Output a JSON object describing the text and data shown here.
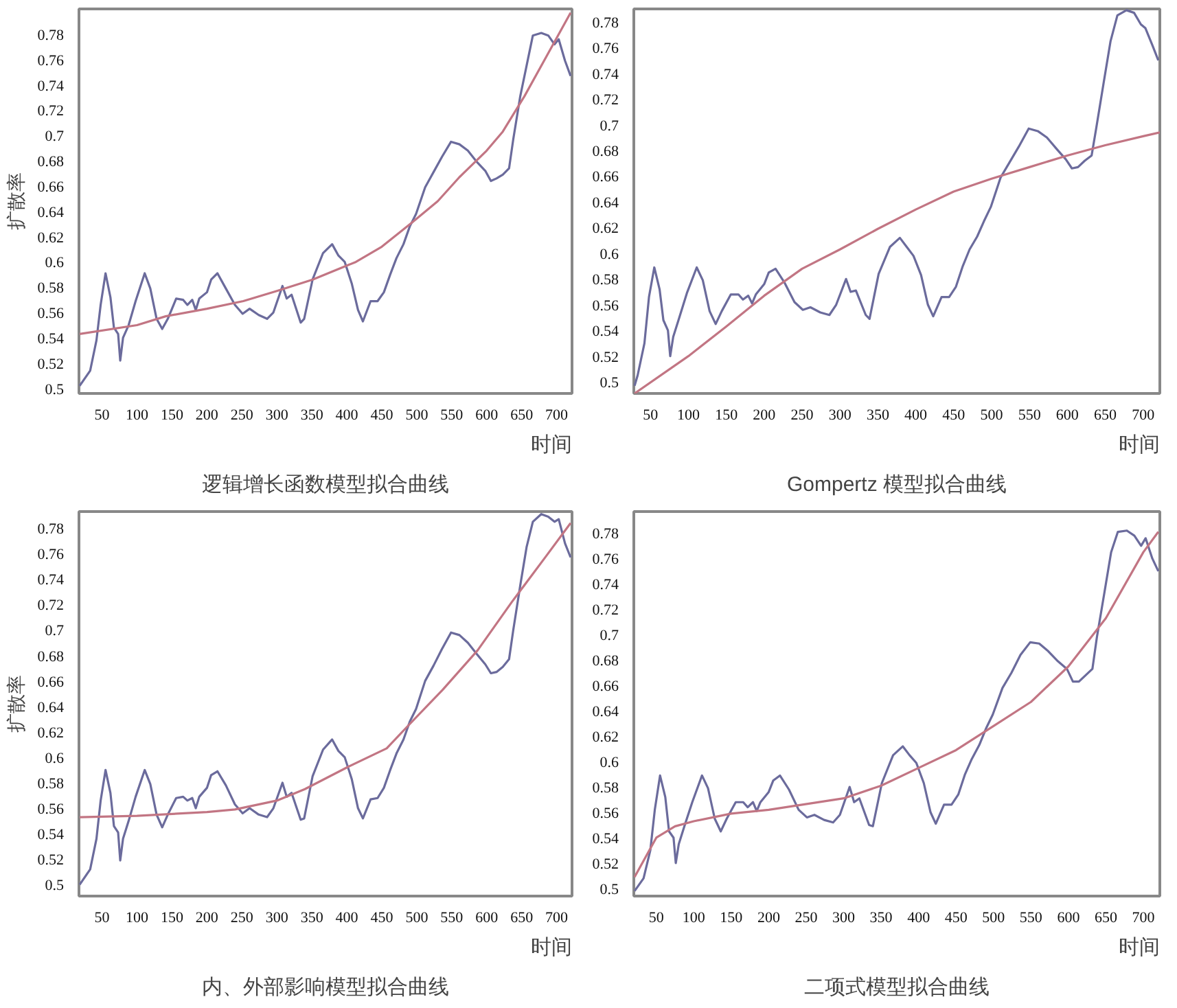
{
  "chart_data": [
    {
      "type": "line",
      "title": "逻辑增长函数模型拟合曲线",
      "xlabel": "时间",
      "ylabel": "扩散率",
      "xlim": [
        17,
        722
      ],
      "ylim": [
        0.496,
        0.8
      ],
      "xticks": [
        50,
        100,
        150,
        200,
        250,
        300,
        350,
        400,
        450,
        500,
        550,
        600,
        650,
        700
      ],
      "yticks": [
        0.5,
        0.52,
        0.54,
        0.56,
        0.58,
        0.6,
        0.62,
        0.64,
        0.66,
        0.68,
        0.7,
        0.72,
        0.74,
        0.76,
        0.78
      ],
      "series": [
        {
          "color": "#6b6b9c",
          "x": [
            18,
            33,
            42,
            48,
            55,
            62,
            67,
            73,
            76,
            80,
            88,
            98,
            111,
            119,
            128,
            136,
            144,
            156,
            166,
            172,
            179,
            184,
            189,
            200,
            206,
            215,
            227,
            240,
            251,
            261,
            274,
            286,
            295,
            308,
            314,
            321,
            334,
            339,
            351,
            366,
            379,
            388,
            397,
            407,
            416,
            423,
            434,
            444,
            453,
            462,
            471,
            481,
            490,
            499,
            512,
            524,
            536,
            549,
            561,
            573,
            586,
            598,
            606,
            614,
            623,
            632,
            638,
            648,
            657,
            666,
            678,
            688,
            697,
            703,
            712,
            720
          ],
          "values": [
            0.502,
            0.514,
            0.538,
            0.566,
            0.591,
            0.572,
            0.548,
            0.543,
            0.522,
            0.54,
            0.55,
            0.569,
            0.591,
            0.579,
            0.555,
            0.547,
            0.555,
            0.571,
            0.57,
            0.566,
            0.57,
            0.562,
            0.571,
            0.576,
            0.586,
            0.591,
            0.579,
            0.566,
            0.559,
            0.563,
            0.558,
            0.555,
            0.56,
            0.581,
            0.571,
            0.574,
            0.552,
            0.555,
            0.586,
            0.607,
            0.614,
            0.605,
            0.6,
            0.583,
            0.562,
            0.553,
            0.569,
            0.569,
            0.576,
            0.59,
            0.603,
            0.614,
            0.628,
            0.638,
            0.659,
            0.671,
            0.683,
            0.695,
            0.693,
            0.688,
            0.679,
            0.672,
            0.664,
            0.666,
            0.669,
            0.674,
            0.697,
            0.731,
            0.755,
            0.779,
            0.781,
            0.779,
            0.772,
            0.776,
            0.759,
            0.747
          ]
        },
        {
          "color": "#c27583",
          "x": [
            18,
            100,
            141,
            200,
            252,
            300,
            351,
            413,
            450,
            493,
            530,
            561,
            600,
            623,
            654,
            685,
            720
          ],
          "values": [
            0.543,
            0.55,
            0.557,
            0.563,
            0.569,
            0.577,
            0.586,
            0.6,
            0.612,
            0.631,
            0.648,
            0.667,
            0.688,
            0.703,
            0.731,
            0.762,
            0.797
          ]
        }
      ]
    },
    {
      "type": "line",
      "title": "Gompertz 模型拟合曲线",
      "xlabel": "时间",
      "xlim": [
        28,
        722
      ],
      "ylim": [
        0.491,
        0.79
      ],
      "xticks": [
        50,
        100,
        150,
        200,
        250,
        300,
        350,
        400,
        450,
        500,
        550,
        600,
        650,
        700
      ],
      "yticks": [
        0.5,
        0.52,
        0.54,
        0.56,
        0.58,
        0.6,
        0.62,
        0.64,
        0.66,
        0.68,
        0.7,
        0.72,
        0.74,
        0.76,
        0.78
      ],
      "series": [
        {
          "color": "#6b6b9c",
          "x": [
            29,
            33,
            42,
            48,
            55,
            62,
            67,
            73,
            76,
            80,
            88,
            98,
            111,
            119,
            128,
            136,
            144,
            156,
            166,
            172,
            179,
            184,
            189,
            200,
            206,
            215,
            227,
            240,
            251,
            261,
            274,
            286,
            295,
            308,
            314,
            321,
            334,
            339,
            351,
            366,
            379,
            388,
            397,
            407,
            416,
            423,
            434,
            444,
            453,
            462,
            471,
            481,
            490,
            499,
            512,
            524,
            536,
            549,
            561,
            573,
            586,
            598,
            606,
            614,
            623,
            632,
            638,
            648,
            657,
            666,
            678,
            688,
            697,
            703,
            712,
            720
          ],
          "values": [
            0.497,
            0.505,
            0.53,
            0.566,
            0.589,
            0.572,
            0.548,
            0.54,
            0.52,
            0.535,
            0.55,
            0.569,
            0.589,
            0.579,
            0.555,
            0.545,
            0.555,
            0.568,
            0.568,
            0.564,
            0.567,
            0.561,
            0.568,
            0.576,
            0.585,
            0.588,
            0.577,
            0.562,
            0.556,
            0.558,
            0.554,
            0.552,
            0.56,
            0.58,
            0.57,
            0.571,
            0.552,
            0.549,
            0.584,
            0.605,
            0.612,
            0.605,
            0.598,
            0.583,
            0.56,
            0.551,
            0.566,
            0.566,
            0.574,
            0.59,
            0.603,
            0.613,
            0.625,
            0.636,
            0.659,
            0.671,
            0.683,
            0.697,
            0.695,
            0.69,
            0.681,
            0.673,
            0.666,
            0.667,
            0.672,
            0.676,
            0.697,
            0.733,
            0.765,
            0.785,
            0.789,
            0.787,
            0.778,
            0.775,
            0.762,
            0.75
          ]
        },
        {
          "color": "#c27583",
          "x": [
            29,
            100,
            150,
            200,
            250,
            300,
            350,
            400,
            450,
            500,
            550,
            600,
            650,
            700,
            722
          ],
          "values": [
            0.491,
            0.52,
            0.543,
            0.567,
            0.588,
            0.603,
            0.619,
            0.634,
            0.648,
            0.658,
            0.667,
            0.676,
            0.684,
            0.691,
            0.694
          ]
        }
      ]
    },
    {
      "type": "line",
      "title": "内、外部影响模型拟合曲线",
      "xlabel": "时间",
      "ylabel": "扩散率",
      "xlim": [
        17,
        722
      ],
      "ylim": [
        0.491,
        0.793
      ],
      "xticks": [
        50,
        100,
        150,
        200,
        250,
        300,
        350,
        400,
        450,
        500,
        550,
        600,
        650,
        700
      ],
      "yticks": [
        0.5,
        0.52,
        0.54,
        0.56,
        0.58,
        0.6,
        0.62,
        0.64,
        0.66,
        0.68,
        0.7,
        0.72,
        0.74,
        0.76,
        0.78
      ],
      "series": [
        {
          "color": "#6b6b9c",
          "x": [
            18,
            33,
            42,
            48,
            55,
            62,
            67,
            73,
            76,
            80,
            88,
            98,
            111,
            119,
            128,
            136,
            144,
            156,
            166,
            172,
            179,
            184,
            189,
            200,
            206,
            215,
            227,
            240,
            251,
            261,
            274,
            286,
            295,
            308,
            314,
            321,
            334,
            339,
            351,
            366,
            379,
            388,
            397,
            407,
            416,
            423,
            434,
            444,
            453,
            462,
            471,
            481,
            490,
            499,
            512,
            524,
            536,
            549,
            561,
            573,
            586,
            598,
            606,
            614,
            623,
            632,
            638,
            648,
            657,
            666,
            678,
            688,
            697,
            703,
            712,
            720
          ],
          "values": [
            0.5,
            0.512,
            0.536,
            0.566,
            0.59,
            0.572,
            0.546,
            0.541,
            0.519,
            0.536,
            0.55,
            0.569,
            0.59,
            0.579,
            0.555,
            0.545,
            0.555,
            0.568,
            0.569,
            0.566,
            0.568,
            0.56,
            0.569,
            0.576,
            0.586,
            0.589,
            0.578,
            0.563,
            0.556,
            0.56,
            0.555,
            0.553,
            0.56,
            0.58,
            0.569,
            0.572,
            0.551,
            0.552,
            0.585,
            0.606,
            0.614,
            0.605,
            0.6,
            0.583,
            0.56,
            0.552,
            0.567,
            0.568,
            0.576,
            0.59,
            0.603,
            0.614,
            0.628,
            0.638,
            0.66,
            0.672,
            0.685,
            0.698,
            0.696,
            0.69,
            0.681,
            0.673,
            0.666,
            0.667,
            0.671,
            0.677,
            0.7,
            0.735,
            0.765,
            0.785,
            0.791,
            0.789,
            0.785,
            0.787,
            0.768,
            0.757
          ]
        },
        {
          "color": "#c27583",
          "x": [
            18,
            100,
            200,
            240,
            300,
            340,
            400,
            457,
            488,
            537,
            587,
            636,
            685,
            720
          ],
          "values": [
            0.553,
            0.554,
            0.557,
            0.559,
            0.566,
            0.575,
            0.592,
            0.607,
            0.625,
            0.653,
            0.684,
            0.722,
            0.758,
            0.784
          ]
        }
      ]
    },
    {
      "type": "line",
      "title": "二项式模型拟合曲线",
      "xlabel": "时间",
      "xlim": [
        20,
        722
      ],
      "ylim": [
        0.494,
        0.797
      ],
      "xticks": [
        50,
        100,
        150,
        200,
        250,
        300,
        350,
        400,
        450,
        500,
        550,
        600,
        650,
        700
      ],
      "yticks": [
        0.5,
        0.52,
        0.54,
        0.56,
        0.58,
        0.6,
        0.62,
        0.64,
        0.66,
        0.68,
        0.7,
        0.72,
        0.74,
        0.76,
        0.78
      ],
      "series": [
        {
          "color": "#6b6b9c",
          "x": [
            21,
            33,
            42,
            48,
            55,
            62,
            67,
            73,
            76,
            80,
            88,
            98,
            111,
            119,
            128,
            136,
            144,
            156,
            166,
            172,
            179,
            184,
            189,
            200,
            206,
            215,
            227,
            240,
            251,
            261,
            274,
            286,
            295,
            308,
            314,
            321,
            334,
            339,
            351,
            366,
            379,
            388,
            397,
            407,
            416,
            423,
            434,
            444,
            453,
            462,
            471,
            481,
            490,
            499,
            512,
            524,
            536,
            549,
            561,
            573,
            586,
            598,
            606,
            614,
            623,
            632,
            638,
            648,
            657,
            666,
            678,
            688,
            697,
            703,
            712,
            720
          ],
          "values": [
            0.498,
            0.508,
            0.53,
            0.562,
            0.589,
            0.572,
            0.545,
            0.54,
            0.52,
            0.535,
            0.55,
            0.568,
            0.589,
            0.579,
            0.555,
            0.545,
            0.555,
            0.568,
            0.568,
            0.564,
            0.568,
            0.561,
            0.568,
            0.576,
            0.585,
            0.589,
            0.578,
            0.562,
            0.556,
            0.558,
            0.554,
            0.552,
            0.558,
            0.58,
            0.568,
            0.571,
            0.55,
            0.549,
            0.583,
            0.605,
            0.612,
            0.605,
            0.599,
            0.583,
            0.56,
            0.551,
            0.566,
            0.566,
            0.574,
            0.59,
            0.602,
            0.613,
            0.626,
            0.637,
            0.658,
            0.67,
            0.684,
            0.694,
            0.693,
            0.687,
            0.679,
            0.673,
            0.663,
            0.663,
            0.668,
            0.673,
            0.698,
            0.733,
            0.765,
            0.781,
            0.782,
            0.778,
            0.77,
            0.776,
            0.76,
            0.75
          ]
        },
        {
          "color": "#c27583",
          "x": [
            21,
            50,
            75,
            100,
            150,
            200,
            300,
            350,
            400,
            450,
            500,
            550,
            600,
            650,
            700,
            720
          ],
          "values": [
            0.509,
            0.54,
            0.549,
            0.553,
            0.559,
            0.562,
            0.571,
            0.581,
            0.595,
            0.609,
            0.628,
            0.647,
            0.675,
            0.713,
            0.765,
            0.781
          ]
        }
      ]
    }
  ]
}
